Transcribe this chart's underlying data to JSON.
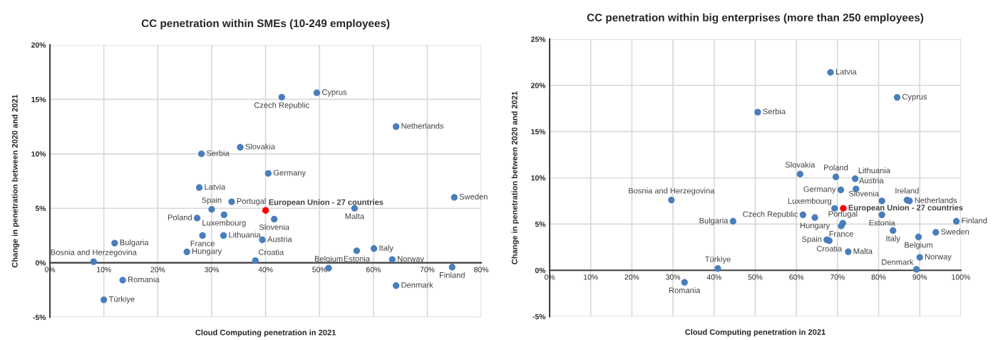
{
  "chart_data": [
    {
      "type": "scatter",
      "title": "CC penetration within SMEs (10-249 employees)",
      "xlabel": "Cloud Computing penetration in 2021",
      "ylabel": "Change in penetration between 2020 and 2021",
      "xlim": [
        0,
        80
      ],
      "ylim": [
        -5,
        20
      ],
      "xticks": [
        {
          "value": 0,
          "label": "0%"
        },
        {
          "value": 10,
          "label": "10%"
        },
        {
          "value": 20,
          "label": "20%"
        },
        {
          "value": 30,
          "label": "30%"
        },
        {
          "value": 40,
          "label": "40%"
        },
        {
          "value": 50,
          "label": "50%"
        },
        {
          "value": 60,
          "label": "60%"
        },
        {
          "value": 70,
          "label": "70%"
        },
        {
          "value": 80,
          "label": "80%"
        }
      ],
      "yticks": [
        {
          "value": -5,
          "label": "-5%"
        },
        {
          "value": 0,
          "label": "0%"
        },
        {
          "value": 5,
          "label": "5%"
        },
        {
          "value": 10,
          "label": "10%"
        },
        {
          "value": 15,
          "label": "15%"
        },
        {
          "value": 20,
          "label": "20%"
        }
      ],
      "grid": true,
      "marker": "circle",
      "series": [
        {
          "color": "#4a7ebb",
          "x": [
            8.1,
            12.0,
            13.5,
            10.0,
            25.4,
            28.3,
            27.3,
            30.0,
            27.7,
            28.1,
            32.3,
            32.2,
            33.7,
            35.3,
            38.1,
            41.6,
            39.4,
            40.5,
            43.0,
            49.5,
            51.7,
            56.5,
            56.9,
            60.1,
            63.5,
            64.2,
            64.2,
            74.6,
            75.0
          ],
          "values": [
            0.1,
            1.8,
            -1.6,
            -3.4,
            1.0,
            2.5,
            4.1,
            4.9,
            6.9,
            10.0,
            4.4,
            2.5,
            5.6,
            10.6,
            0.2,
            4.0,
            2.1,
            8.2,
            15.2,
            15.6,
            -0.5,
            5.0,
            1.1,
            1.3,
            0.3,
            12.5,
            -2.1,
            -0.4,
            6.0
          ]
        },
        {
          "color": "#ff0000",
          "x": [
            40.0
          ],
          "values": [
            4.8
          ]
        }
      ],
      "annotations": [
        {
          "text": "Bosnia and Herzegovina",
          "x": 8.1,
          "y": 0.1
        },
        {
          "text": "Bulgaria",
          "x": 12.0,
          "y": 1.8
        },
        {
          "text": "Romania",
          "x": 13.5,
          "y": -1.6
        },
        {
          "text": "Türkiye",
          "x": 10.0,
          "y": -3.4
        },
        {
          "text": "Hungary",
          "x": 25.4,
          "y": 1.0
        },
        {
          "text": "France",
          "x": 28.3,
          "y": 2.5
        },
        {
          "text": "Poland",
          "x": 27.3,
          "y": 4.1
        },
        {
          "text": "Spain",
          "x": 30.0,
          "y": 4.9
        },
        {
          "text": "Latvia",
          "x": 27.7,
          "y": 6.9
        },
        {
          "text": "Serbia",
          "x": 28.1,
          "y": 10.0
        },
        {
          "text": "Luxembourg",
          "x": 32.3,
          "y": 4.4
        },
        {
          "text": "Lithuania",
          "x": 32.2,
          "y": 2.5
        },
        {
          "text": "Portugal",
          "x": 33.7,
          "y": 5.6
        },
        {
          "text": "Slovakia",
          "x": 35.3,
          "y": 10.6
        },
        {
          "text": "Croatia",
          "x": 38.1,
          "y": 0.2
        },
        {
          "text": "Slovenia",
          "x": 41.6,
          "y": 4.0
        },
        {
          "text": "Austria",
          "x": 39.4,
          "y": 2.1
        },
        {
          "text": "Germany",
          "x": 40.5,
          "y": 8.2
        },
        {
          "text": "Czech Republic",
          "x": 43.0,
          "y": 15.2
        },
        {
          "text": "Cyprus",
          "x": 49.5,
          "y": 15.6
        },
        {
          "text": "Belgium",
          "x": 51.7,
          "y": -0.5
        },
        {
          "text": "Malta",
          "x": 56.5,
          "y": 5.0
        },
        {
          "text": "Estonia",
          "x": 56.9,
          "y": 1.1
        },
        {
          "text": "Italy",
          "x": 60.1,
          "y": 1.3
        },
        {
          "text": "Norway",
          "x": 63.5,
          "y": 0.3
        },
        {
          "text": "Netherlands",
          "x": 64.2,
          "y": 12.5
        },
        {
          "text": "Denmark",
          "x": 64.2,
          "y": -2.1
        },
        {
          "text": "Finland",
          "x": 74.6,
          "y": -0.4
        },
        {
          "text": "Sweden",
          "x": 75.0,
          "y": 6.0
        },
        {
          "text": "European Union - 27 countries",
          "x": 40.0,
          "y": 4.8
        }
      ]
    },
    {
      "type": "scatter",
      "title": "CC penetration within big enterprises (more than 250 employees)",
      "xlabel": "Cloud Computing penetration in 2021",
      "ylabel": "Change in penetration between 2020 and 2021",
      "xlim": [
        0,
        100
      ],
      "ylim": [
        -5,
        25
      ],
      "xticks": [
        {
          "value": 0,
          "label": "0%"
        },
        {
          "value": 10,
          "label": "10%"
        },
        {
          "value": 20,
          "label": "20%"
        },
        {
          "value": 30,
          "label": "30%"
        },
        {
          "value": 40,
          "label": "40%"
        },
        {
          "value": 50,
          "label": "50%"
        },
        {
          "value": 60,
          "label": "60%"
        },
        {
          "value": 70,
          "label": "70%"
        },
        {
          "value": 80,
          "label": "80%"
        },
        {
          "value": 90,
          "label": "90%"
        },
        {
          "value": 100,
          "label": "100%"
        }
      ],
      "yticks": [
        {
          "value": -5,
          "label": "-5%"
        },
        {
          "value": 0,
          "label": "0%"
        },
        {
          "value": 5,
          "label": "5%"
        },
        {
          "value": 10,
          "label": "10%"
        },
        {
          "value": 15,
          "label": "15%"
        },
        {
          "value": 20,
          "label": "20%"
        },
        {
          "value": 25,
          "label": "25%"
        }
      ],
      "grid": true,
      "marker": "circle",
      "series": [
        {
          "color": "#4a7ebb",
          "x": [
            29.6,
            44.6,
            40.9,
            32.8,
            68.3,
            84.5,
            50.6,
            60.9,
            69.6,
            74.3,
            70.8,
            74.5,
            80.8,
            86.9,
            87.5,
            69.3,
            80.8,
            61.6,
            64.5,
            71.3,
            70.9,
            98.9,
            83.5,
            93.9,
            89.7,
            67.4,
            68.0,
            72.6,
            90.0,
            89.2
          ],
          "values": [
            7.6,
            5.3,
            0.2,
            -1.3,
            21.4,
            18.7,
            17.1,
            10.4,
            10.1,
            9.9,
            8.7,
            8.8,
            7.5,
            7.6,
            7.5,
            6.7,
            6.0,
            6.0,
            5.7,
            5.1,
            4.8,
            5.3,
            4.3,
            4.1,
            3.6,
            3.3,
            3.2,
            2.0,
            1.4,
            0.1
          ]
        },
        {
          "color": "#ff0000",
          "x": [
            71.4
          ],
          "values": [
            6.7
          ]
        }
      ],
      "annotations": [
        {
          "text": "Bosnia and Herzegovina",
          "x": 29.6,
          "y": 7.6
        },
        {
          "text": "Bulgaria",
          "x": 44.6,
          "y": 5.3
        },
        {
          "text": "Türkiye",
          "x": 40.9,
          "y": 0.2
        },
        {
          "text": "Romania",
          "x": 32.8,
          "y": -1.3
        },
        {
          "text": "Latvia",
          "x": 68.3,
          "y": 21.4
        },
        {
          "text": "Cyprus",
          "x": 84.5,
          "y": 18.7
        },
        {
          "text": "Serbia",
          "x": 50.6,
          "y": 17.1
        },
        {
          "text": "Slovakia",
          "x": 60.9,
          "y": 10.4
        },
        {
          "text": "Poland",
          "x": 69.6,
          "y": 10.1
        },
        {
          "text": "Lithuania",
          "x": 74.3,
          "y": 9.9
        },
        {
          "text": "Germany",
          "x": 70.8,
          "y": 8.7
        },
        {
          "text": "Austria",
          "x": 74.5,
          "y": 8.8
        },
        {
          "text": "Slovenia",
          "x": 80.8,
          "y": 7.5
        },
        {
          "text": "Ireland",
          "x": 86.9,
          "y": 7.6
        },
        {
          "text": "Netherlands",
          "x": 87.5,
          "y": 7.5
        },
        {
          "text": "Luxembourg",
          "x": 69.3,
          "y": 6.7
        },
        {
          "text": "Estonia",
          "x": 80.8,
          "y": 6.0
        },
        {
          "text": "Czech Republic",
          "x": 61.6,
          "y": 6.0
        },
        {
          "text": "Hungary",
          "x": 64.5,
          "y": 5.7
        },
        {
          "text": "Portugal",
          "x": 71.3,
          "y": 5.1
        },
        {
          "text": "France",
          "x": 70.9,
          "y": 4.8
        },
        {
          "text": "Finland",
          "x": 98.9,
          "y": 5.3
        },
        {
          "text": "Italy",
          "x": 83.5,
          "y": 4.3
        },
        {
          "text": "Sweden",
          "x": 93.9,
          "y": 4.1
        },
        {
          "text": "Belgium",
          "x": 89.7,
          "y": 3.6
        },
        {
          "text": "Spain",
          "x": 67.4,
          "y": 3.3
        },
        {
          "text": "Croatia",
          "x": 68.0,
          "y": 3.2
        },
        {
          "text": "Malta",
          "x": 72.6,
          "y": 2.0
        },
        {
          "text": "Norway",
          "x": 90.0,
          "y": 1.4
        },
        {
          "text": "Denmark",
          "x": 89.2,
          "y": 0.1
        },
        {
          "text": "European Union - 27 countries",
          "x": 71.4,
          "y": 6.7
        }
      ]
    }
  ]
}
